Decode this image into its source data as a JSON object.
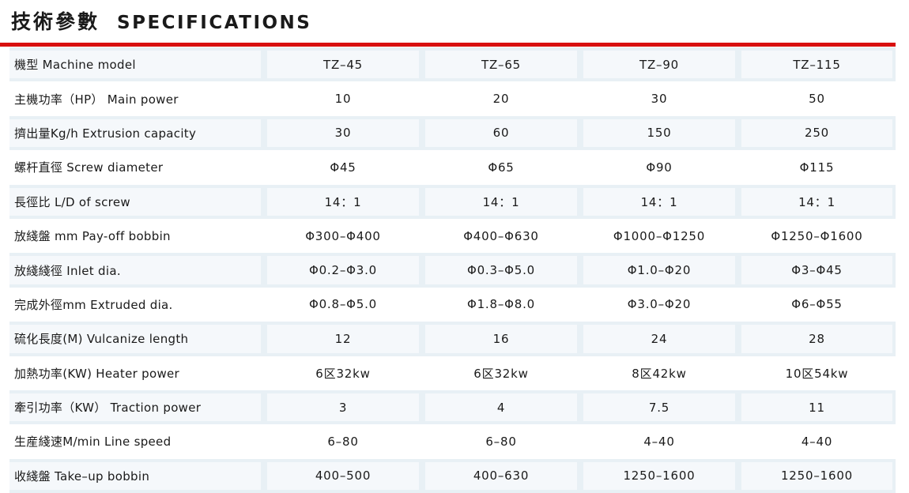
{
  "title": {
    "zh": "技術參數",
    "en": "SPECIFICATIONS"
  },
  "colors": {
    "accent_red": "#d8100f",
    "row_tint": "#e8f0f5",
    "text": "#1a1a1a"
  },
  "table": {
    "rows": [
      {
        "label": "機型 Machine model",
        "values": [
          "TZ–45",
          "TZ–65",
          "TZ–90",
          "TZ–115"
        ]
      },
      {
        "label": "主機功率（HP） Main power",
        "values": [
          "10",
          "20",
          "30",
          "50"
        ]
      },
      {
        "label": "擠出量Kg/h Extrusion capacity",
        "values": [
          "30",
          "60",
          "150",
          "250"
        ]
      },
      {
        "label": "螺杆直徑 Screw diameter",
        "values": [
          "Φ45",
          "Φ65",
          "Φ90",
          "Φ115"
        ]
      },
      {
        "label": "長徑比 L/D of screw",
        "values": [
          "14：1",
          "14：1",
          "14：1",
          "14：1"
        ]
      },
      {
        "label": "放綫盤 mm Pay-off bobbin",
        "values": [
          "Φ300–Φ400",
          "Φ400–Φ630",
          "Φ1000–Φ1250",
          "Φ1250–Φ1600"
        ]
      },
      {
        "label": "放綫綫徑 Inlet dia.",
        "values": [
          "Φ0.2–Φ3.0",
          "Φ0.3–Φ5.0",
          "Φ1.0–Φ20",
          "Φ3–Φ45"
        ]
      },
      {
        "label": "完成外徑mm  Extruded dia.",
        "values": [
          "Φ0.8–Φ5.0",
          "Φ1.8–Φ8.0",
          "Φ3.0–Φ20",
          "Φ6–Φ55"
        ]
      },
      {
        "label": "硫化長度(M)  Vulcanize length",
        "values": [
          "12",
          "16",
          "24",
          "28"
        ]
      },
      {
        "label": "加熱功率(KW)  Heater power",
        "values": [
          "6区32kw",
          "6区32kw",
          "8区42kw",
          "10区54kw"
        ]
      },
      {
        "label": "牽引功率（KW） Traction  power",
        "values": [
          "3",
          "4",
          "7.5",
          "11"
        ]
      },
      {
        "label": "生産綫速M/min  Line speed",
        "values": [
          "6–80",
          "6–80",
          "4–40",
          "4–40"
        ]
      },
      {
        "label": "收綫盤 Take–up bobbin",
        "values": [
          "400–500",
          "400–630",
          "1250–1600",
          "1250–1600"
        ]
      }
    ]
  }
}
